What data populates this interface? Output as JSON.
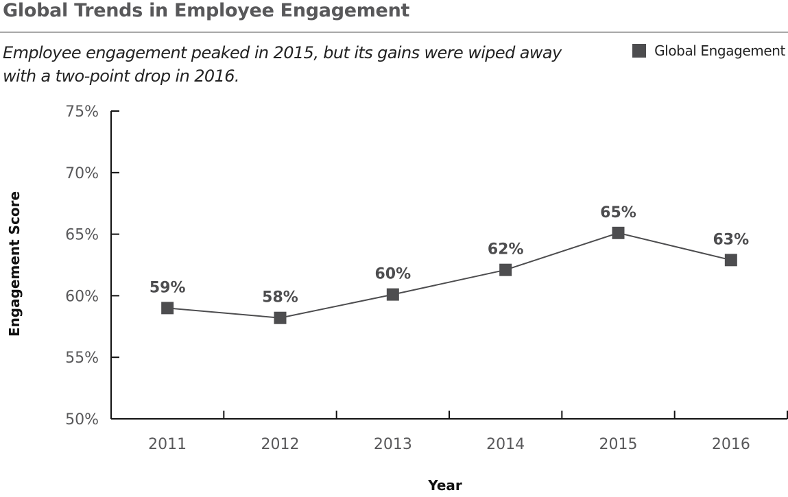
{
  "header": {
    "title": "Global Trends in Employee Engagement",
    "subtitle": "Employee engagement peaked in 2015, but its gains were wiped away with a two-point drop in 2016."
  },
  "chart_data": {
    "type": "line",
    "title": "Global Trends in Employee Engagement",
    "subtitle": "Employee engagement peaked in 2015, but its gains were wiped away with a two-point drop in 2016.",
    "xlabel": "Year",
    "ylabel": "Engagement Score",
    "categories": [
      "2011",
      "2012",
      "2013",
      "2014",
      "2015",
      "2016"
    ],
    "series": [
      {
        "name": "Global Engagement",
        "values": [
          59.0,
          58.2,
          60.1,
          62.1,
          65.1,
          62.9
        ],
        "data_labels": [
          "59%",
          "58%",
          "60%",
          "62%",
          "65%",
          "63%"
        ],
        "color": "#4d4d4f",
        "marker": "square"
      }
    ],
    "ylim": [
      50,
      75
    ],
    "yticks": [
      50,
      55,
      60,
      65,
      70,
      75
    ],
    "ytick_labels": [
      "50%",
      "55%",
      "60%",
      "65%",
      "70%",
      "75%"
    ],
    "grid": false,
    "legend": "top-right"
  }
}
